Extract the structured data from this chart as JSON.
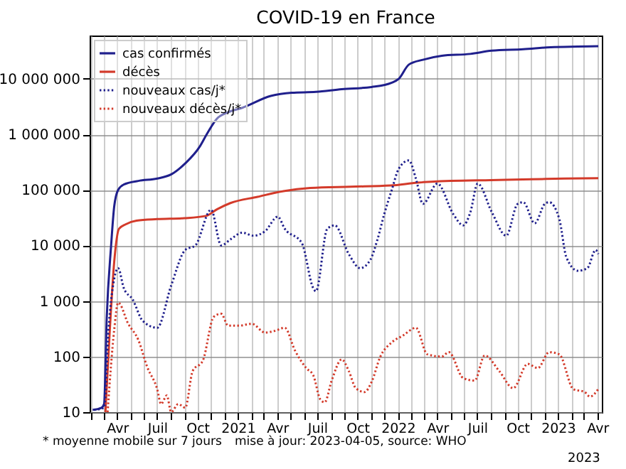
{
  "chart_data": {
    "type": "line",
    "title": "COVID-19 en France",
    "annotations": [
      "* moyenne mobile sur 7 jours",
      "mise à jour: 2023-04-05, source: WHO",
      "2023"
    ],
    "log": "y",
    "grid": true,
    "legend": "top left",
    "xlim": [
      "2020-01-29",
      "2023-04-11"
    ],
    "ylim": [
      10,
      60000000
    ],
    "xticks": [
      {
        "value": "2020-02",
        "label": null
      },
      {
        "value": "2020-03",
        "label": null
      },
      {
        "value": "2020-04",
        "label": "Avr"
      },
      {
        "value": "2020-05",
        "label": null
      },
      {
        "value": "2020-06",
        "label": null
      },
      {
        "value": "2020-07",
        "label": "Juil"
      },
      {
        "value": "2020-08",
        "label": null
      },
      {
        "value": "2020-09",
        "label": null
      },
      {
        "value": "2020-10",
        "label": "Oct"
      },
      {
        "value": "2020-11",
        "label": null
      },
      {
        "value": "2020-12",
        "label": null
      },
      {
        "value": "2021-01",
        "label": "2021"
      },
      {
        "value": "2021-02",
        "label": null
      },
      {
        "value": "2021-03",
        "label": null
      },
      {
        "value": "2021-04",
        "label": "Avr"
      },
      {
        "value": "2021-05",
        "label": null
      },
      {
        "value": "2021-06",
        "label": null
      },
      {
        "value": "2021-07",
        "label": "Juil"
      },
      {
        "value": "2021-08",
        "label": null
      },
      {
        "value": "2021-09",
        "label": null
      },
      {
        "value": "2021-10",
        "label": "Oct"
      },
      {
        "value": "2021-11",
        "label": null
      },
      {
        "value": "2021-12",
        "label": null
      },
      {
        "value": "2022-01",
        "label": "2022"
      },
      {
        "value": "2022-02",
        "label": null
      },
      {
        "value": "2022-03",
        "label": null
      },
      {
        "value": "2022-04",
        "label": "Avr"
      },
      {
        "value": "2022-05",
        "label": null
      },
      {
        "value": "2022-06",
        "label": null
      },
      {
        "value": "2022-07",
        "label": "Juil"
      },
      {
        "value": "2022-08",
        "label": null
      },
      {
        "value": "2022-09",
        "label": null
      },
      {
        "value": "2022-10",
        "label": "Oct"
      },
      {
        "value": "2022-11",
        "label": null
      },
      {
        "value": "2022-12",
        "label": null
      },
      {
        "value": "2023-01",
        "label": "2023"
      },
      {
        "value": "2023-02",
        "label": null
      },
      {
        "value": "2023-03",
        "label": null
      },
      {
        "value": "2023-04",
        "label": "Avr"
      }
    ],
    "yticks": [
      {
        "value": 10,
        "label": "10"
      },
      {
        "value": 100,
        "label": "100"
      },
      {
        "value": 1000,
        "label": "1 000"
      },
      {
        "value": 10000,
        "label": "10 000"
      },
      {
        "value": 100000,
        "label": "100 000"
      },
      {
        "value": 1000000,
        "label": "1 000 000"
      },
      {
        "value": 10000000,
        "label": "10 000 000"
      }
    ],
    "series": [
      {
        "name": "cas confirmés",
        "color": "#1f1f8c",
        "line_style": "solid",
        "x": [
          "2020-02-05",
          "2020-02-25",
          "2020-03-02",
          "2020-03-08",
          "2020-03-18",
          "2020-03-25",
          "2020-04-03",
          "2020-04-16",
          "2020-05-19",
          "2020-07-01",
          "2020-08-02",
          "2020-09-03",
          "2020-10-06",
          "2020-10-22",
          "2020-11-14",
          "2020-12-10",
          "2021-01-11",
          "2021-03-17",
          "2021-05-04",
          "2021-06-28",
          "2021-08-26",
          "2021-11-02",
          "2021-12-18",
          "2022-01-03",
          "2022-01-26",
          "2022-02-27",
          "2022-04-11",
          "2022-06-15",
          "2022-08-03",
          "2022-10-14",
          "2022-12-15",
          "2023-02-15",
          "2023-04-03"
        ],
        "values": [
          11,
          12,
          14,
          500,
          10000,
          50000,
          100000,
          125000,
          145000,
          160000,
          190000,
          300000,
          600000,
          1000000,
          1900000,
          2500000,
          3000000,
          4900000,
          5600000,
          5800000,
          6500000,
          7100000,
          8500000,
          10000000,
          18000000,
          22000000,
          26000000,
          28000000,
          32000000,
          34000000,
          37000000,
          38000000,
          38500000
        ]
      },
      {
        "name": "décès",
        "color": "#d33a2a",
        "line_style": "solid",
        "x": [
          "2020-03-05",
          "2020-03-15",
          "2020-03-25",
          "2020-04-05",
          "2020-04-20",
          "2020-05-15",
          "2020-07-01",
          "2020-09-01",
          "2020-10-20",
          "2020-11-15",
          "2020-12-15",
          "2021-02-15",
          "2021-04-15",
          "2021-06-15",
          "2021-09-15",
          "2021-12-15",
          "2022-02-15",
          "2022-05-01",
          "2022-08-01",
          "2022-11-01",
          "2023-01-15",
          "2023-04-03"
        ],
        "values": [
          10,
          300,
          5000,
          20000,
          24000,
          28000,
          29800,
          31000,
          34000,
          45000,
          58000,
          75000,
          95000,
          108000,
          114000,
          120000,
          135000,
          145000,
          150000,
          155000,
          160000,
          163000
        ]
      },
      {
        "name": "nouveaux cas/j*",
        "color": "#1f1f8c",
        "line_style": "dotted",
        "x": [
          "2020-02-08",
          "2020-03-02",
          "2020-03-12",
          "2020-03-25",
          "2020-04-03",
          "2020-04-16",
          "2020-05-06",
          "2020-05-29",
          "2020-07-01",
          "2020-08-02",
          "2020-09-03",
          "2020-09-26",
          "2020-11-01",
          "2020-11-24",
          "2020-12-16",
          "2021-01-11",
          "2021-02-06",
          "2021-03-04",
          "2021-04-02",
          "2021-04-18",
          "2021-05-27",
          "2021-06-22",
          "2021-06-28",
          "2021-07-24",
          "2021-08-10",
          "2021-09-11",
          "2021-10-07",
          "2021-10-30",
          "2021-11-15",
          "2021-12-01",
          "2021-12-18",
          "2022-01-03",
          "2022-01-26",
          "2022-02-11",
          "2022-02-27",
          "2022-04-01",
          "2022-05-07",
          "2022-05-30",
          "2022-06-15",
          "2022-07-02",
          "2022-08-03",
          "2022-09-05",
          "2022-10-01",
          "2022-10-14",
          "2022-11-09",
          "2022-12-02",
          "2022-12-12",
          "2023-01-04",
          "2023-01-20",
          "2023-02-15",
          "2023-03-09",
          "2023-03-28",
          "2023-04-03"
        ],
        "values": [
          11,
          12,
          300,
          2500,
          3900,
          1700,
          1070,
          440,
          330,
          1900,
          8300,
          10000,
          44000,
          10000,
          13000,
          17000,
          15000,
          18000,
          33000,
          20000,
          11000,
          1700,
          1500,
          20000,
          23000,
          7000,
          3900,
          5500,
          12500,
          37000,
          100000,
          240000,
          340000,
          160000,
          56000,
          130000,
          37000,
          23000,
          39000,
          130000,
          40000,
          15000,
          56000,
          60000,
          25000,
          56000,
          60000,
          30000,
          6200,
          3500,
          3900,
          8300,
          7000
        ]
      },
      {
        "name": "nouveaux décès/j*",
        "color": "#d33a2a",
        "line_style": "dotted",
        "x": [
          "2020-03-10",
          "2020-03-25",
          "2020-04-03",
          "2020-04-26",
          "2020-05-19",
          "2020-06-08",
          "2020-07-01",
          "2020-07-10",
          "2020-07-23",
          "2020-08-02",
          "2020-08-18",
          "2020-09-03",
          "2020-09-20",
          "2020-10-13",
          "2020-11-07",
          "2020-11-24",
          "2020-12-10",
          "2021-01-04",
          "2021-02-02",
          "2021-03-04",
          "2021-03-26",
          "2021-04-18",
          "2021-05-11",
          "2021-06-06",
          "2021-06-22",
          "2021-07-08",
          "2021-07-18",
          "2021-08-03",
          "2021-08-26",
          "2021-09-11",
          "2021-09-27",
          "2021-10-17",
          "2021-11-02",
          "2021-11-22",
          "2021-12-18",
          "2022-01-13",
          "2022-02-11",
          "2022-03-09",
          "2022-04-11",
          "2022-04-27",
          "2022-05-30",
          "2022-06-25",
          "2022-07-18",
          "2022-08-20",
          "2022-09-21",
          "2022-10-24",
          "2022-11-16",
          "2022-12-12",
          "2023-01-04",
          "2023-02-05",
          "2023-03-03",
          "2023-03-15",
          "2023-04-03"
        ],
        "values": [
          10,
          300,
          940,
          390,
          200,
          66,
          26,
          14,
          20,
          10,
          14,
          12,
          55,
          84,
          520,
          590,
          360,
          360,
          390,
          270,
          290,
          330,
          130,
          62,
          46,
          17,
          15,
          37,
          89,
          55,
          27,
          23,
          35,
          100,
          180,
          240,
          330,
          110,
          100,
          120,
          41,
          37,
          105,
          55,
          27,
          74,
          62,
          120,
          110,
          26,
          23,
          19,
          26
        ]
      }
    ]
  }
}
